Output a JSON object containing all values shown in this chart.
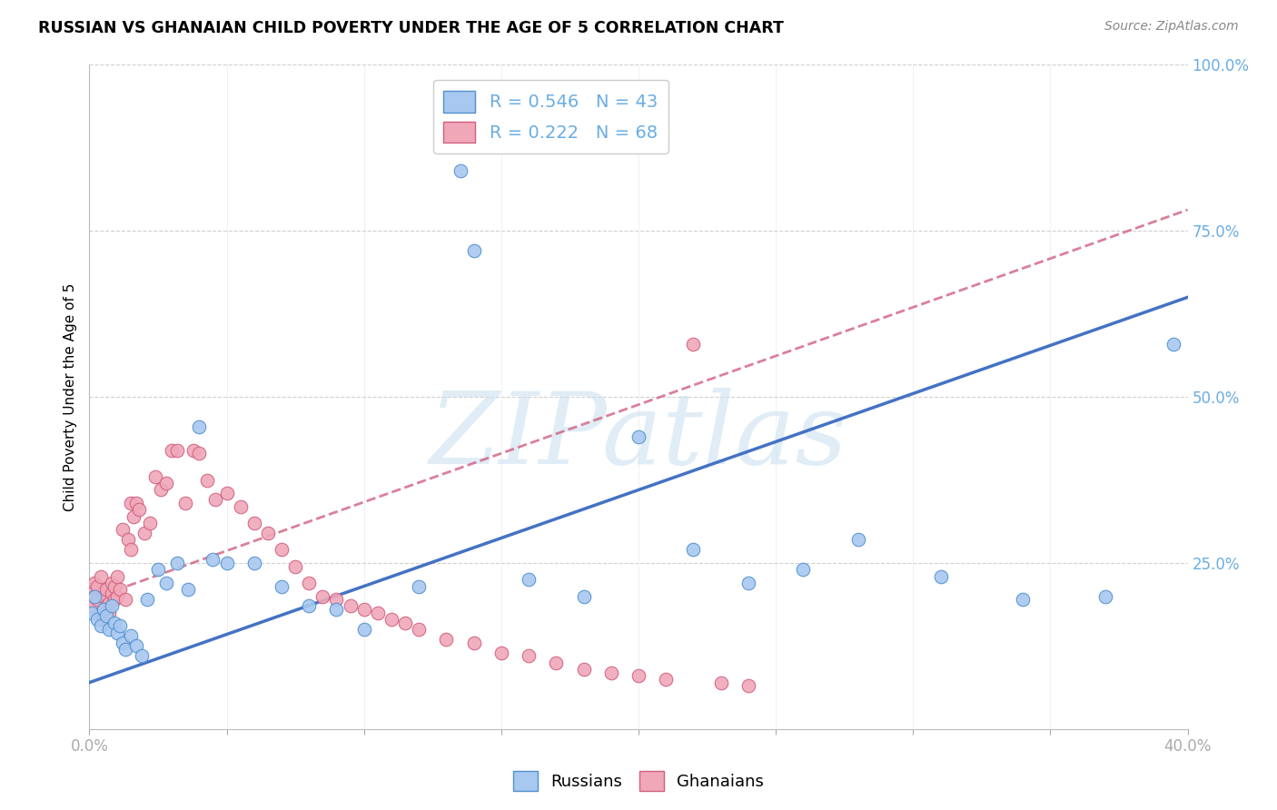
{
  "title": "RUSSIAN VS GHANAIAN CHILD POVERTY UNDER THE AGE OF 5 CORRELATION CHART",
  "source": "Source: ZipAtlas.com",
  "ylabel": "Child Poverty Under the Age of 5",
  "xlim": [
    0,
    0.4
  ],
  "ylim": [
    0,
    1.0
  ],
  "background_color": "#ffffff",
  "grid_color": "#d0d0d0",
  "blue_fill": "#a8c8f0",
  "blue_edge": "#5090d0",
  "pink_fill": "#f0a8b8",
  "pink_edge": "#d06080",
  "blue_line_color": "#4472c4",
  "pink_line_color": "#e07090",
  "axis_tick_color": "#6aade4",
  "watermark": "ZIPatlas",
  "legend_blue": "R = 0.546   N = 43",
  "legend_pink": "R = 0.222   N = 68",
  "russians_x": [
    0.001,
    0.002,
    0.003,
    0.004,
    0.005,
    0.006,
    0.007,
    0.008,
    0.009,
    0.01,
    0.011,
    0.012,
    0.013,
    0.015,
    0.017,
    0.019,
    0.021,
    0.025,
    0.028,
    0.032,
    0.036,
    0.04,
    0.045,
    0.05,
    0.06,
    0.07,
    0.08,
    0.09,
    0.1,
    0.12,
    0.135,
    0.14,
    0.16,
    0.18,
    0.2,
    0.22,
    0.24,
    0.26,
    0.28,
    0.31,
    0.34,
    0.37,
    0.395
  ],
  "russians_y": [
    0.175,
    0.2,
    0.165,
    0.155,
    0.18,
    0.17,
    0.15,
    0.185,
    0.16,
    0.145,
    0.155,
    0.13,
    0.12,
    0.14,
    0.125,
    0.11,
    0.195,
    0.24,
    0.22,
    0.25,
    0.21,
    0.455,
    0.255,
    0.25,
    0.25,
    0.215,
    0.185,
    0.18,
    0.15,
    0.215,
    0.84,
    0.72,
    0.225,
    0.2,
    0.44,
    0.27,
    0.22,
    0.24,
    0.285,
    0.23,
    0.195,
    0.2,
    0.58
  ],
  "ghanaians_x": [
    0.001,
    0.001,
    0.002,
    0.002,
    0.003,
    0.003,
    0.004,
    0.004,
    0.005,
    0.005,
    0.006,
    0.006,
    0.007,
    0.007,
    0.008,
    0.008,
    0.009,
    0.009,
    0.01,
    0.01,
    0.011,
    0.012,
    0.013,
    0.014,
    0.015,
    0.015,
    0.016,
    0.017,
    0.018,
    0.02,
    0.022,
    0.024,
    0.026,
    0.028,
    0.03,
    0.032,
    0.035,
    0.038,
    0.04,
    0.043,
    0.046,
    0.05,
    0.055,
    0.06,
    0.065,
    0.07,
    0.075,
    0.08,
    0.085,
    0.09,
    0.095,
    0.1,
    0.105,
    0.11,
    0.115,
    0.12,
    0.13,
    0.14,
    0.15,
    0.16,
    0.17,
    0.18,
    0.19,
    0.2,
    0.21,
    0.22,
    0.23,
    0.24
  ],
  "ghanaians_y": [
    0.185,
    0.21,
    0.2,
    0.22,
    0.195,
    0.215,
    0.175,
    0.23,
    0.165,
    0.2,
    0.21,
    0.185,
    0.175,
    0.19,
    0.205,
    0.22,
    0.215,
    0.195,
    0.2,
    0.23,
    0.21,
    0.3,
    0.195,
    0.285,
    0.27,
    0.34,
    0.32,
    0.34,
    0.33,
    0.295,
    0.31,
    0.38,
    0.36,
    0.37,
    0.42,
    0.42,
    0.34,
    0.42,
    0.415,
    0.375,
    0.345,
    0.355,
    0.335,
    0.31,
    0.295,
    0.27,
    0.245,
    0.22,
    0.2,
    0.195,
    0.185,
    0.18,
    0.175,
    0.165,
    0.16,
    0.15,
    0.135,
    0.13,
    0.115,
    0.11,
    0.1,
    0.09,
    0.085,
    0.08,
    0.075,
    0.58,
    0.07,
    0.065
  ],
  "blue_line_x0": 0.0,
  "blue_line_y0": 0.07,
  "blue_line_x1": 0.4,
  "blue_line_y1": 0.65,
  "pink_line_x0": 0.0,
  "pink_line_y0": 0.195,
  "pink_line_x1": 0.15,
  "pink_line_y1": 0.415
}
